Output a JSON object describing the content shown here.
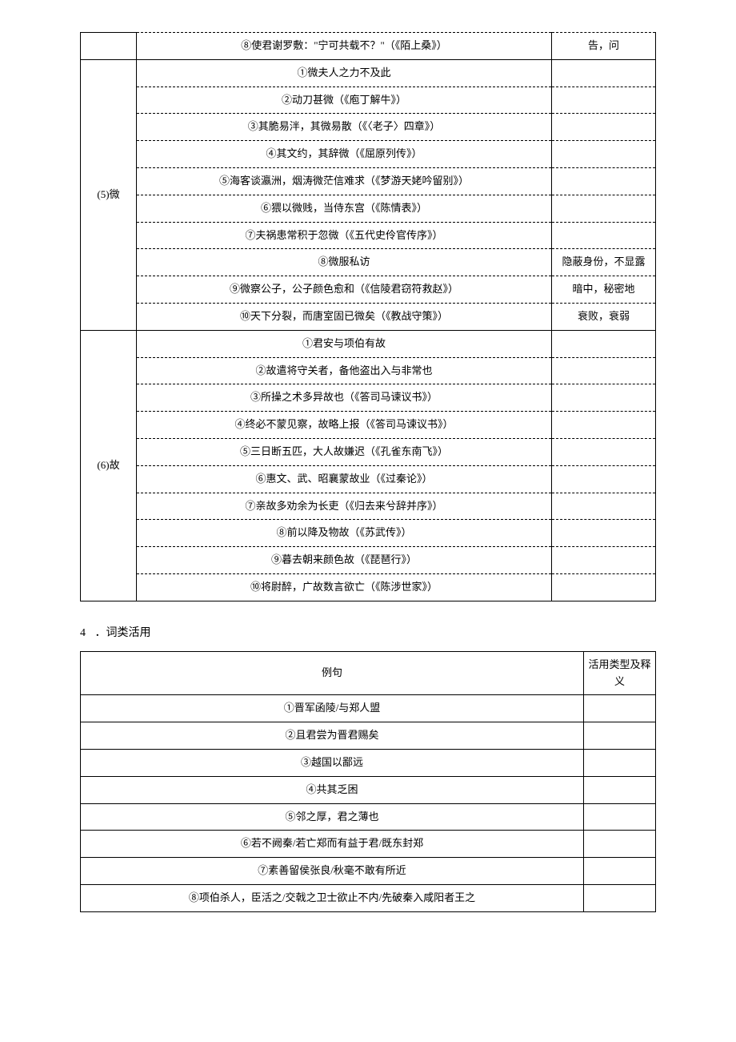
{
  "table1": {
    "groups": [
      {
        "label": "",
        "rows": [
          {
            "text": "⑧使君谢罗敷：\"宁可共载不？\"（《陌上桑》）",
            "meaning": "告，问",
            "dashedTop": true,
            "dashedBottom": false
          }
        ]
      },
      {
        "label": "(5)微",
        "rows": [
          {
            "text": "①微夫人之力不及此",
            "meaning": "",
            "dashedTop": false,
            "dashedBottom": true
          },
          {
            "text": "②动刀甚微（《庖丁解牛》）",
            "meaning": "",
            "dashedTop": true,
            "dashedBottom": true
          },
          {
            "text": "③其脆易泮，其微易散（《〈老子〉四章》）",
            "meaning": "",
            "dashedTop": true,
            "dashedBottom": true
          },
          {
            "text": "④其文约，其辞微（《屈原列传》）",
            "meaning": "",
            "dashedTop": true,
            "dashedBottom": true
          },
          {
            "text": "⑤海客谈瀛洲，烟涛微茫信难求（《梦游天姥吟留别》）",
            "meaning": "",
            "dashedTop": true,
            "dashedBottom": true
          },
          {
            "text": "⑥猥以微贱，当侍东宫（《陈情表》）",
            "meaning": "",
            "dashedTop": true,
            "dashedBottom": true
          },
          {
            "text": "⑦夫祸患常积于忽微（《五代史伶官传序》）",
            "meaning": "",
            "dashedTop": true,
            "dashedBottom": true
          },
          {
            "text": "⑧微服私访",
            "meaning": "隐蔽身份，不显露",
            "dashedTop": true,
            "dashedBottom": true
          },
          {
            "text": "⑨微察公子，公子颜色愈和（《信陵君窃符救赵》）",
            "meaning": "暗中，秘密地",
            "dashedTop": true,
            "dashedBottom": true
          },
          {
            "text": "⑩天下分裂，而唐室固已微矣（《教战守策》）",
            "meaning": "衰败，衰弱",
            "dashedTop": true,
            "dashedBottom": false
          }
        ]
      },
      {
        "label": "(6)故",
        "rows": [
          {
            "text": "①君安与项伯有故",
            "meaning": "",
            "dashedTop": false,
            "dashedBottom": true
          },
          {
            "text": "②故遣将守关者，备他盗出入与非常也",
            "meaning": "",
            "dashedTop": true,
            "dashedBottom": true
          },
          {
            "text": "③所操之术多异故也（《答司马谏议书》）",
            "meaning": "",
            "dashedTop": true,
            "dashedBottom": true
          },
          {
            "text": "④终必不蒙见察，故略上报（《答司马谏议书》）",
            "meaning": "",
            "dashedTop": true,
            "dashedBottom": true
          },
          {
            "text": "⑤三日断五匹，大人故嫌迟（《孔雀东南飞》）",
            "meaning": "",
            "dashedTop": true,
            "dashedBottom": true
          },
          {
            "text": "⑥惠文、武、昭襄蒙故业（《过秦论》）",
            "meaning": "",
            "dashedTop": true,
            "dashedBottom": true
          },
          {
            "text": "⑦亲故多劝余为长吏（《归去来兮辞并序》）",
            "meaning": "",
            "dashedTop": true,
            "dashedBottom": true
          },
          {
            "text": "⑧前以降及物故（《苏武传》）",
            "meaning": "",
            "dashedTop": true,
            "dashedBottom": true
          },
          {
            "text": "⑨暮去朝来颜色故（《琵琶行》）",
            "meaning": "",
            "dashedTop": true,
            "dashedBottom": true
          },
          {
            "text": "⑩将尉醉，广故数言欲亡（《陈涉世家》）",
            "meaning": "",
            "dashedTop": true,
            "dashedBottom": false
          }
        ]
      }
    ]
  },
  "section4": {
    "num": "4",
    "title": "．词类活用"
  },
  "table2": {
    "header_example": "例句",
    "header_type": "活用类型及释义",
    "rows": [
      {
        "text": "①晋军函陵/与郑人盟",
        "type": ""
      },
      {
        "text": "②且君尝为晋君赐矣",
        "type": ""
      },
      {
        "text": "③越国以鄙远",
        "type": ""
      },
      {
        "text": "④共其乏困",
        "type": ""
      },
      {
        "text": "⑤邻之厚，君之薄也",
        "type": ""
      },
      {
        "text": "⑥若不阙秦/若亡郑而有益于君/既东封郑",
        "type": ""
      },
      {
        "text": "⑦素善留侯张良/秋毫不敢有所近",
        "type": ""
      },
      {
        "text": "⑧项伯杀人，臣活之/交戟之卫士欲止不内/先破秦入咸阳者王之",
        "type": ""
      }
    ]
  },
  "colors": {
    "text": "#000000",
    "background": "#ffffff",
    "border": "#000000"
  }
}
